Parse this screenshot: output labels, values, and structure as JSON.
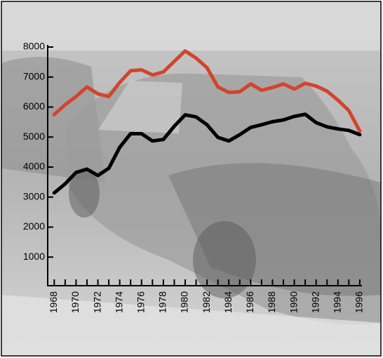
{
  "chart_data": {
    "type": "line",
    "x": [
      1968,
      1969,
      1970,
      1971,
      1972,
      1973,
      1974,
      1975,
      1976,
      1977,
      1978,
      1979,
      1980,
      1981,
      1982,
      1983,
      1984,
      1985,
      1986,
      1987,
      1988,
      1989,
      1990,
      1991,
      1992,
      1993,
      1994,
      1995,
      1996
    ],
    "series": [
      {
        "color": "#d2442c",
        "values": [
          5750,
          6080,
          6350,
          6670,
          6440,
          6350,
          6820,
          7210,
          7240,
          7070,
          7170,
          7520,
          7870,
          7630,
          7310,
          6670,
          6490,
          6510,
          6770,
          6560,
          6650,
          6770,
          6600,
          6790,
          6700,
          6530,
          6230,
          5880,
          5200
        ]
      },
      {
        "color": "#000000",
        "values": [
          3140,
          3440,
          3820,
          3930,
          3720,
          3960,
          4660,
          5110,
          5110,
          4870,
          4920,
          5360,
          5740,
          5670,
          5410,
          4990,
          4870,
          5080,
          5320,
          5410,
          5510,
          5570,
          5690,
          5760,
          5480,
          5340,
          5270,
          5220,
          5080
        ]
      }
    ],
    "xlim": [
      1967.4,
      1996.2
    ],
    "xticks": [
      1968,
      1970,
      1972,
      1974,
      1976,
      1978,
      1980,
      1982,
      1984,
      1986,
      1988,
      1990,
      1992,
      1994,
      1996
    ],
    "xticks_minor": [
      1969,
      1971,
      1973,
      1975,
      1977,
      1979,
      1981,
      1983,
      1985,
      1987,
      1989,
      1991,
      1993,
      1995
    ],
    "ylim": [
      0,
      8000
    ],
    "yticks": [
      1000,
      2000,
      3000,
      4000,
      5000,
      6000,
      7000,
      8000
    ]
  }
}
